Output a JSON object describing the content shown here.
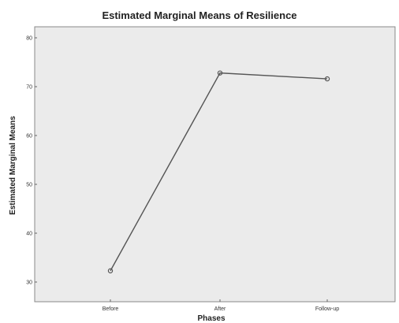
{
  "chart_data": {
    "type": "line",
    "title": "Estimated Marginal Means of Resilience",
    "xlabel": "Phases",
    "ylabel": "Estimated Marginal Means",
    "categories": [
      "Before",
      "After",
      "Follow-up"
    ],
    "series": [
      {
        "values": [
          32.3,
          72.8,
          71.6
        ]
      }
    ],
    "ylim": [
      30,
      80
    ],
    "yticks": [
      "30",
      "40",
      "50",
      "60",
      "70",
      "80"
    ],
    "grid": false,
    "colors": {
      "plot_background": "#ebebeb",
      "line": "#555555",
      "marker": "#555555"
    }
  }
}
